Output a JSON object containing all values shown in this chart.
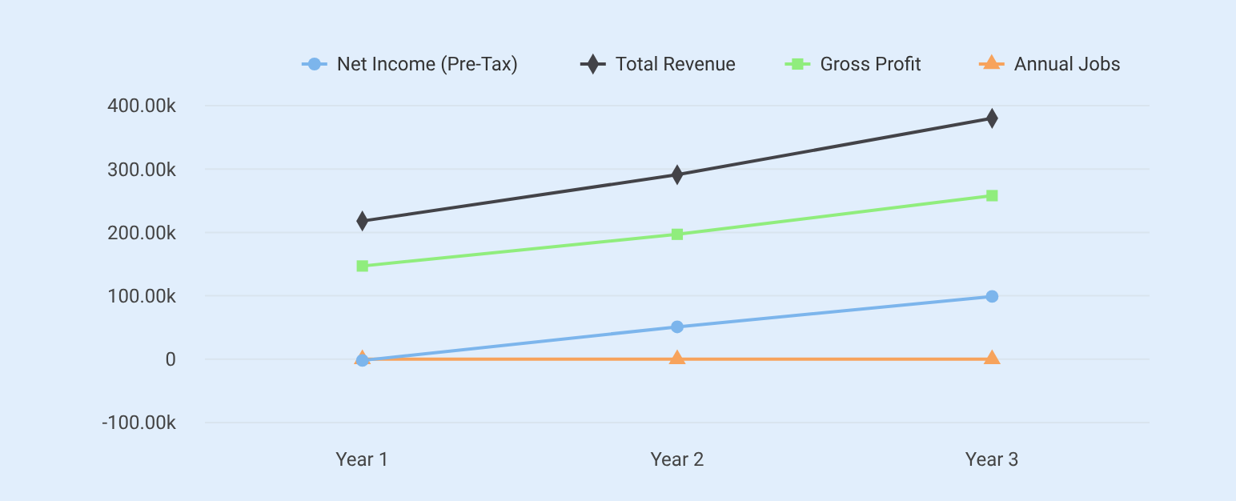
{
  "chart_data": {
    "type": "line",
    "categories": [
      "Year 1",
      "Year 2",
      "Year 3"
    ],
    "series": [
      {
        "name": "Net Income (Pre-Tax)",
        "color": "#7cb5ec",
        "marker": "circle",
        "values": [
          -2000,
          51000,
          99000
        ]
      },
      {
        "name": "Total Revenue",
        "color": "#434348",
        "marker": "diamond",
        "values": [
          218000,
          291000,
          380000
        ]
      },
      {
        "name": "Gross Profit",
        "color": "#90ed7d",
        "marker": "square",
        "values": [
          147000,
          197000,
          258000
        ]
      },
      {
        "name": "Annual Jobs",
        "color": "#f7a35c",
        "marker": "triangle",
        "values": [
          0,
          0,
          0
        ]
      }
    ],
    "ylim": [
      -100000,
      400000
    ],
    "yticks": [
      {
        "value": -100000,
        "label": "-100.00k"
      },
      {
        "value": 0,
        "label": "0"
      },
      {
        "value": 100000,
        "label": "100.00k"
      },
      {
        "value": 200000,
        "label": "200.00k"
      },
      {
        "value": 300000,
        "label": "300.00k"
      },
      {
        "value": 400000,
        "label": "400.00k"
      }
    ],
    "grid": "y",
    "legend": "top right"
  }
}
